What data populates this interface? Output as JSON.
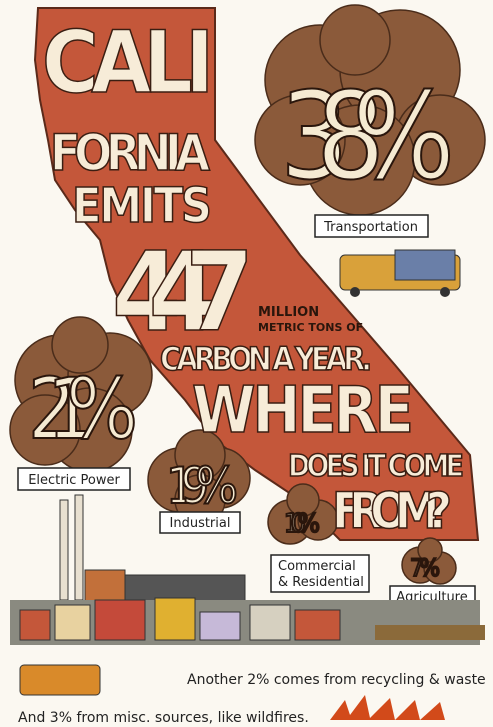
{
  "headline": [
    "CALI",
    "FORNIA",
    "EMITS",
    "447",
    "MILLION",
    "METRIC TONS OF",
    "CARBON A YEAR.",
    "WHERE",
    "DOES IT COME",
    "FROM?"
  ],
  "sources": [
    {
      "percent": "38%",
      "label": "Transportation"
    },
    {
      "percent": "21%",
      "label": "Electric Power"
    },
    {
      "percent": "19%",
      "label": "Industrial"
    },
    {
      "percent": "10%",
      "label": [
        "Commercial",
        "& Residential"
      ]
    },
    {
      "percent": "7%",
      "label": "Agriculture"
    }
  ],
  "footer": [
    "Another 2% comes from recycling & waste",
    "And 3% from misc. sources, like wildfires."
  ]
}
